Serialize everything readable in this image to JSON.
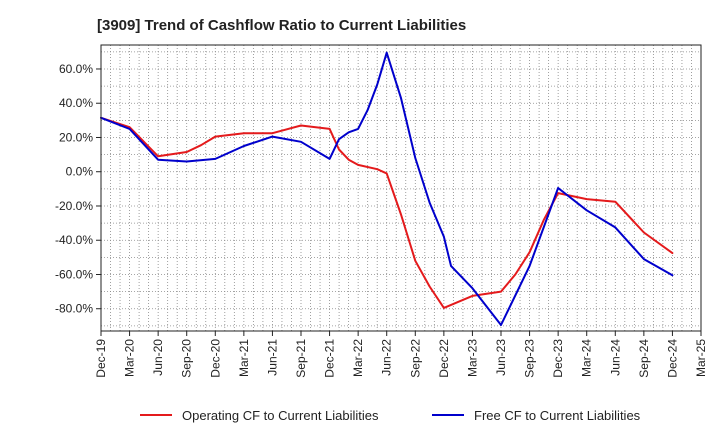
{
  "chart_data": {
    "type": "line",
    "title": "[3909]  Trend of Cashflow Ratio to Current Liabilities",
    "xlabel": "",
    "ylabel": "",
    "ylim": [
      -93,
      74
    ],
    "y_ticks": [
      60,
      40,
      20,
      0,
      -20,
      -40,
      -60,
      -80
    ],
    "y_tick_labels": [
      "60.0%",
      "40.0%",
      "20.0%",
      "0.0%",
      "-20.0%",
      "-40.0%",
      "-60.0%",
      "-80.0%"
    ],
    "x_tick_labels": [
      "Dec-19",
      "Mar-20",
      "Jun-20",
      "Sep-20",
      "Dec-20",
      "Mar-21",
      "Jun-21",
      "Sep-21",
      "Dec-21",
      "Mar-22",
      "Jun-22",
      "Sep-22",
      "Dec-22",
      "Mar-23",
      "Jun-23",
      "Sep-23",
      "Dec-23",
      "Mar-24",
      "Jun-24",
      "Sep-24",
      "Dec-24",
      "Mar-25"
    ],
    "grid": true,
    "legend_position": "bottom",
    "series": [
      {
        "name": "Operating CF to Current Liabilities",
        "color": "#e41a1c",
        "points": [
          [
            0,
            31.5
          ],
          [
            1,
            26
          ],
          [
            2,
            9
          ],
          [
            3,
            11.5
          ],
          [
            3.5,
            15.5
          ],
          [
            4,
            20.5
          ],
          [
            5,
            22.5
          ],
          [
            6,
            22.5
          ],
          [
            7,
            27
          ],
          [
            8,
            25
          ],
          [
            8.33,
            13
          ],
          [
            8.67,
            7
          ],
          [
            9,
            4
          ],
          [
            9.67,
            1.5
          ],
          [
            10,
            -1
          ],
          [
            10.5,
            -25
          ],
          [
            11,
            -52
          ],
          [
            11.5,
            -67
          ],
          [
            12,
            -79.5
          ],
          [
            12.5,
            -76
          ],
          [
            13,
            -72.5
          ],
          [
            14,
            -70
          ],
          [
            14.5,
            -60
          ],
          [
            15,
            -47
          ],
          [
            15.5,
            -28
          ],
          [
            16,
            -12.5
          ],
          [
            17,
            -16
          ],
          [
            18,
            -17.5
          ],
          [
            19,
            -35.5
          ],
          [
            20,
            -47.5
          ]
        ]
      },
      {
        "name": "Free CF to Current Liabilities",
        "color": "#0000cc",
        "points": [
          [
            0,
            31.5
          ],
          [
            1,
            25
          ],
          [
            2,
            7
          ],
          [
            3,
            6
          ],
          [
            4,
            7.5
          ],
          [
            5,
            15
          ],
          [
            6,
            20.5
          ],
          [
            7,
            17.5
          ],
          [
            8,
            7.5
          ],
          [
            8.33,
            19
          ],
          [
            8.67,
            23
          ],
          [
            9,
            25
          ],
          [
            9.33,
            36
          ],
          [
            9.67,
            51
          ],
          [
            10,
            69.5
          ],
          [
            10.5,
            43
          ],
          [
            11,
            8
          ],
          [
            11.5,
            -18
          ],
          [
            12,
            -38
          ],
          [
            12.25,
            -55
          ],
          [
            13,
            -68
          ],
          [
            14,
            -89.5
          ],
          [
            15,
            -55
          ],
          [
            16,
            -9.5
          ],
          [
            17,
            -22.5
          ],
          [
            18,
            -32.5
          ],
          [
            19,
            -51
          ],
          [
            20,
            -60.5
          ]
        ]
      }
    ]
  }
}
